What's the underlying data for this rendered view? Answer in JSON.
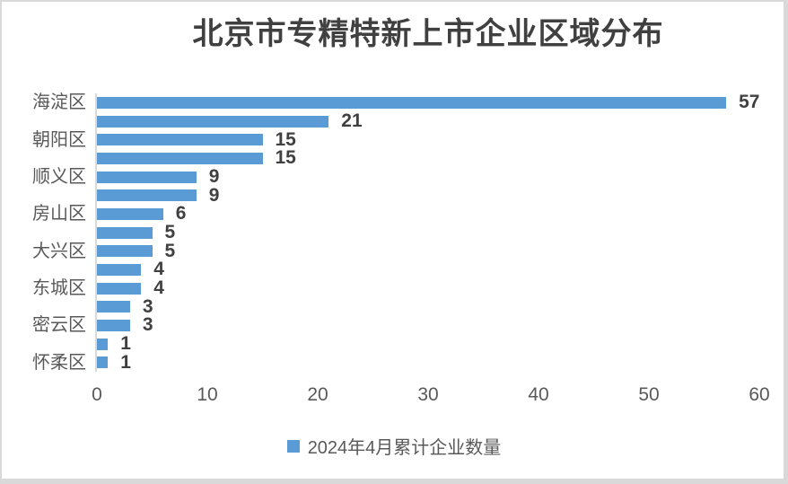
{
  "chart_data": {
    "type": "bar",
    "orientation": "horizontal",
    "title": "北京市专精特新上市企业区域分布",
    "legend": {
      "label": "2024年4月累计企业数量",
      "marker_color": "#5B9BD5",
      "position": "bottom"
    },
    "bars": [
      {
        "label": "海淀区",
        "value": 57
      },
      {
        "label": "",
        "value": 21
      },
      {
        "label": "朝阳区",
        "value": 15
      },
      {
        "label": "",
        "value": 15
      },
      {
        "label": "顺义区",
        "value": 9
      },
      {
        "label": "",
        "value": 9
      },
      {
        "label": "房山区",
        "value": 6
      },
      {
        "label": "",
        "value": 5
      },
      {
        "label": "大兴区",
        "value": 5
      },
      {
        "label": "",
        "value": 4
      },
      {
        "label": "东城区",
        "value": 4
      },
      {
        "label": "",
        "value": 3
      },
      {
        "label": "密云区",
        "value": 3
      },
      {
        "label": "",
        "value": 1
      },
      {
        "label": "怀柔区",
        "value": 1
      }
    ],
    "x_axis": {
      "min": 0,
      "max": 60,
      "ticks": [
        0,
        10,
        20,
        30,
        40,
        50,
        60
      ]
    },
    "bar_color": "#5B9BD5",
    "axis_line_color": "#D9D9D9",
    "show_data_labels": true,
    "gridlines": false
  }
}
